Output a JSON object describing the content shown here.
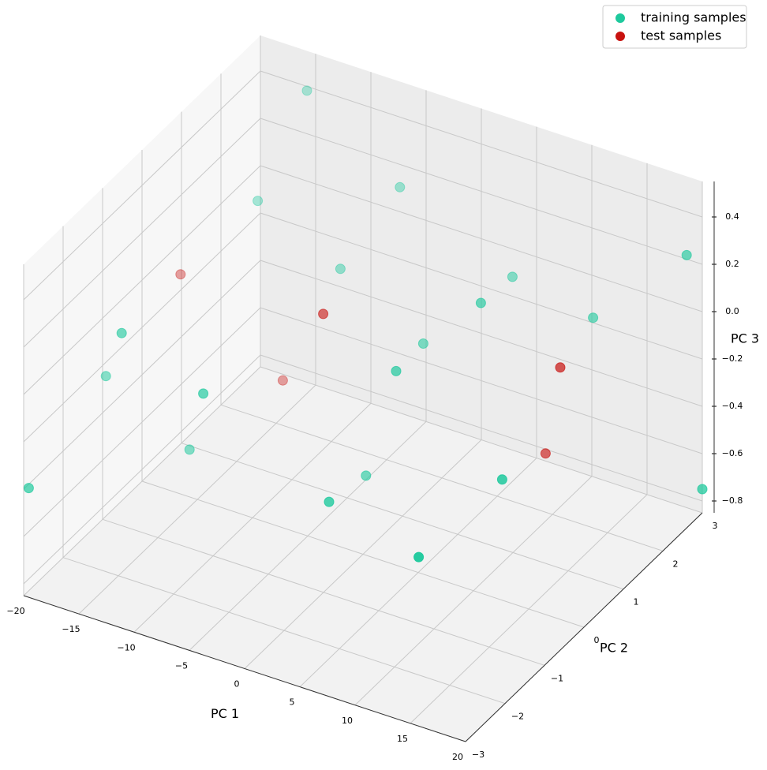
{
  "chart_data": {
    "type": "scatter3d",
    "xlabel": "PC 1",
    "ylabel": "PC 2",
    "zlabel": "PC 3",
    "xlim": [
      -20,
      20
    ],
    "ylim": [
      -3,
      3
    ],
    "zlim": [
      -0.85,
      0.55
    ],
    "xticks": [
      {
        "value": -20,
        "label": "−20"
      },
      {
        "value": -15,
        "label": "−15"
      },
      {
        "value": -10,
        "label": "−10"
      },
      {
        "value": -5,
        "label": "−5"
      },
      0,
      5,
      10,
      15,
      20
    ],
    "yticks": [
      {
        "value": -3,
        "label": "−3"
      },
      {
        "value": -2,
        "label": "−2"
      },
      {
        "value": -1,
        "label": "−1"
      },
      0,
      1,
      2,
      3
    ],
    "zticks": [
      {
        "value": -0.8,
        "label": "−0.8"
      },
      {
        "value": -0.6,
        "label": "−0.6"
      },
      {
        "value": -0.4,
        "label": "−0.4"
      },
      {
        "value": -0.2,
        "label": "−0.2"
      },
      {
        "value": 0,
        "label": "0.0"
      },
      0.2,
      0.4
    ],
    "grid": true,
    "legend": "upper right",
    "series": [
      {
        "name": "training samples",
        "color": "#1ec99d",
        "x": [
          -14,
          -3.8,
          -13.1,
          -7.4,
          4.6,
          7.1,
          19.3,
          11.9,
          -14.7,
          0.1,
          -19.7,
          -9.1,
          3,
          -15.7,
          -3.3,
          -19.9,
          0.5,
          12.6,
          10.4,
          20
        ],
        "y": [
          2.5,
          2,
          1,
          1.5,
          2.5,
          1,
          2.8,
          2.5,
          -2,
          1.5,
          -1,
          -1.5,
          0,
          0,
          1,
          -2.9,
          -1,
          0,
          -1.5,
          3
        ],
        "z": [
          0.49,
          0.32,
          0.28,
          0.0,
          -0.01,
          0.16,
          0.26,
          -0.07,
          0.18,
          -0.2,
          -0.24,
          -0.07,
          -0.03,
          -0.65,
          -0.73,
          -0.41,
          -0.46,
          -0.34,
          -0.46,
          -0.75
        ]
      },
      {
        "name": "test samples",
        "color": "#c8120f",
        "x": [
          -18.3,
          -3.6,
          12.5,
          -14.4,
          7.6
        ],
        "y": [
          0.5,
          0,
          1.5,
          2,
          2.5
        ],
        "z": [
          -0.03,
          0.11,
          -0.11,
          -0.66,
          -0.71
        ]
      }
    ]
  }
}
